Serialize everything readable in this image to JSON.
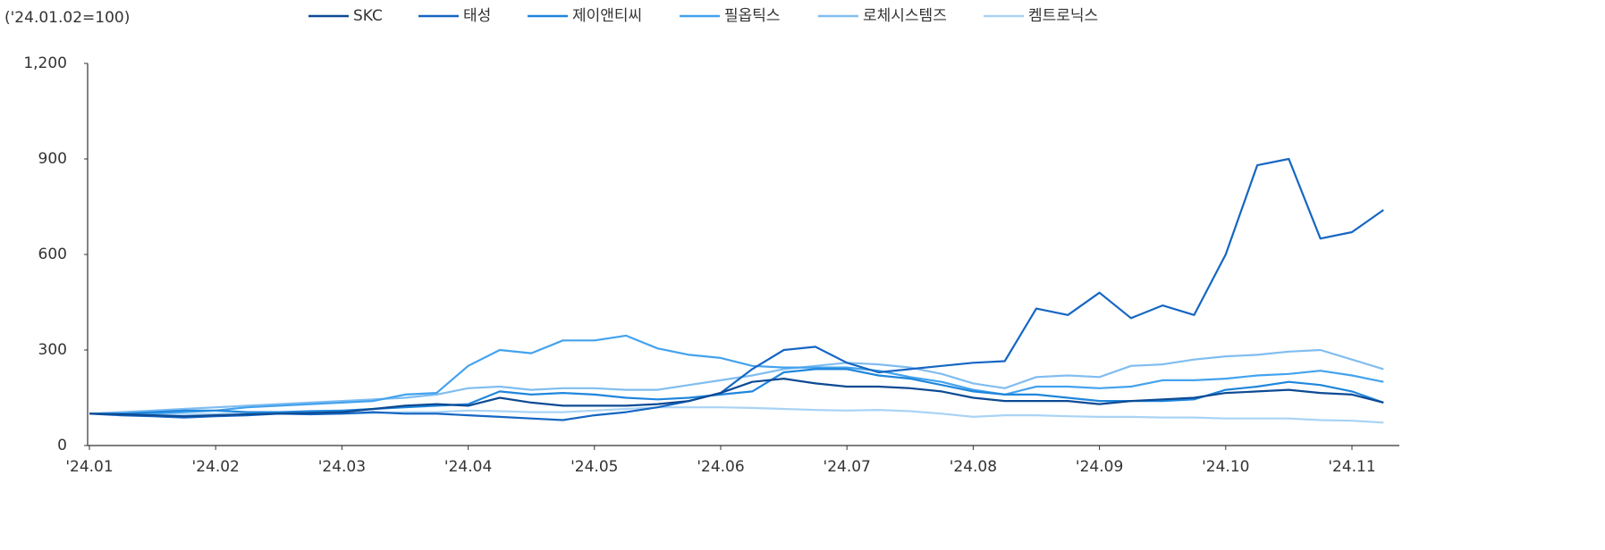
{
  "chart_data": {
    "type": "line",
    "title": "('24.01.02=100)",
    "categories": [
      "'24.01",
      null,
      null,
      null,
      "'24.02",
      null,
      null,
      null,
      "'24.03",
      null,
      null,
      null,
      "'24.04",
      null,
      null,
      null,
      "'24.05",
      null,
      null,
      null,
      "'24.06",
      null,
      null,
      null,
      "'24.07",
      null,
      null,
      null,
      "'24.08",
      null,
      null,
      null,
      "'24.09",
      null,
      null,
      null,
      "'24.10",
      null,
      null,
      null,
      "'24.11",
      null
    ],
    "series": [
      {
        "name": "SKC",
        "color": "#0d4a94",
        "values": [
          100,
          98,
          95,
          92,
          95,
          98,
          100,
          102,
          105,
          115,
          125,
          130,
          125,
          150,
          135,
          125,
          125,
          125,
          130,
          140,
          165,
          200,
          210,
          195,
          185,
          185,
          180,
          170,
          150,
          140,
          140,
          140,
          130,
          140,
          145,
          150,
          165,
          170,
          175,
          165,
          160,
          135
        ]
      },
      {
        "name": "태성",
        "color": "#1566c2",
        "values": [
          100,
          95,
          92,
          88,
          92,
          95,
          100,
          98,
          100,
          105,
          100,
          100,
          95,
          90,
          85,
          80,
          95,
          105,
          120,
          140,
          165,
          240,
          300,
          310,
          260,
          230,
          240,
          250,
          260,
          265,
          430,
          410,
          480,
          400,
          440,
          410,
          600,
          880,
          900,
          650,
          670,
          740
        ]
      },
      {
        "name": "제이앤티씨",
        "color": "#1f86dc",
        "values": [
          100,
          100,
          105,
          110,
          110,
          105,
          105,
          108,
          110,
          115,
          120,
          125,
          130,
          170,
          160,
          165,
          160,
          150,
          145,
          150,
          160,
          170,
          230,
          240,
          240,
          220,
          210,
          190,
          170,
          160,
          160,
          150,
          140,
          140,
          140,
          145,
          175,
          185,
          200,
          190,
          170,
          135
        ]
      },
      {
        "name": "필옵틱스",
        "color": "#43a2ee",
        "values": [
          100,
          100,
          100,
          105,
          110,
          120,
          125,
          130,
          135,
          140,
          160,
          165,
          250,
          300,
          290,
          330,
          330,
          345,
          305,
          285,
          275,
          250,
          245,
          245,
          245,
          235,
          215,
          200,
          175,
          160,
          185,
          185,
          180,
          185,
          205,
          205,
          210,
          220,
          225,
          235,
          220,
          200
        ]
      },
      {
        "name": "로체시스템즈",
        "color": "#80bdf0",
        "values": [
          100,
          105,
          110,
          115,
          120,
          125,
          130,
          135,
          140,
          145,
          150,
          160,
          180,
          185,
          175,
          180,
          180,
          175,
          175,
          190,
          205,
          220,
          240,
          250,
          260,
          255,
          245,
          225,
          195,
          180,
          215,
          220,
          215,
          250,
          255,
          270,
          280,
          285,
          295,
          300,
          270,
          240
        ]
      },
      {
        "name": "켐트로닉스",
        "color": "#a9d3f5",
        "values": [
          100,
          98,
          95,
          97,
          100,
          100,
          102,
          100,
          100,
          102,
          105,
          105,
          110,
          108,
          105,
          105,
          110,
          115,
          120,
          120,
          120,
          118,
          115,
          112,
          110,
          112,
          108,
          100,
          90,
          95,
          95,
          92,
          90,
          90,
          88,
          88,
          85,
          85,
          85,
          80,
          78,
          72
        ]
      }
    ],
    "ylim": [
      0,
      1200
    ],
    "yticks": [
      0,
      300,
      600,
      900,
      {
        "value": 1200,
        "label": "1,200"
      }
    ],
    "grid": false
  }
}
